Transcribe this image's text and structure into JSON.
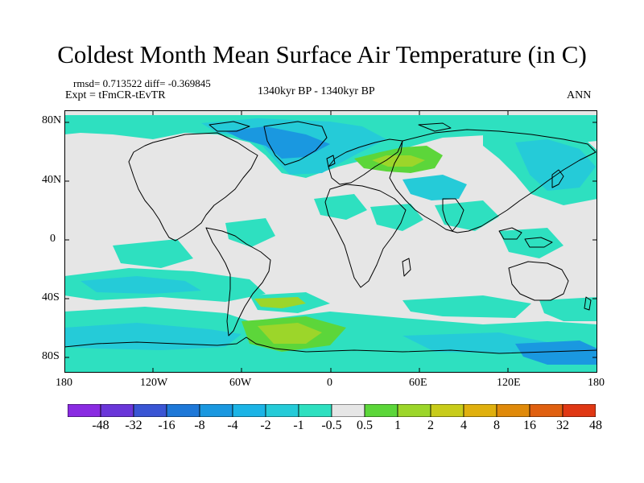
{
  "title": "Coldest Month Mean Surface Air Temperature (in C)",
  "stats": "rmsd= 0.713522 diff= -0.369845",
  "experiment": "Expt = tFmCR-tEvTR",
  "period": "1340kyr BP - 1340kyr BP",
  "season": "ANN",
  "lat_ticks": [
    "80N",
    "40N",
    "0",
    "40S",
    "80S"
  ],
  "lon_ticks": [
    "180",
    "120W",
    "60W",
    "0",
    "60E",
    "120E",
    "180"
  ],
  "colorbar": {
    "labels": [
      "-48",
      "-32",
      "-16",
      "-8",
      "-4",
      "-2",
      "-1",
      "-0.5",
      "0.5",
      "1",
      "2",
      "4",
      "8",
      "16",
      "32",
      "48"
    ],
    "colors": [
      "#8a2be2",
      "#6a36d9",
      "#3a55d4",
      "#1e78d8",
      "#1a98e0",
      "#1cb4e6",
      "#25cbd8",
      "#2ee0c0",
      "#e6e6e6",
      "#5cd63a",
      "#9cd62a",
      "#c8cc1a",
      "#e0b00e",
      "#e08a0a",
      "#e06010",
      "#e03814"
    ]
  },
  "colors": {
    "background": "#e6e6e6",
    "coastline": "#000000",
    "teal": "#2ee0c0",
    "cyan": "#25cbd8",
    "blue": "#1a98e0",
    "green": "#5cd63a",
    "yellowgreen": "#9cd62a"
  }
}
